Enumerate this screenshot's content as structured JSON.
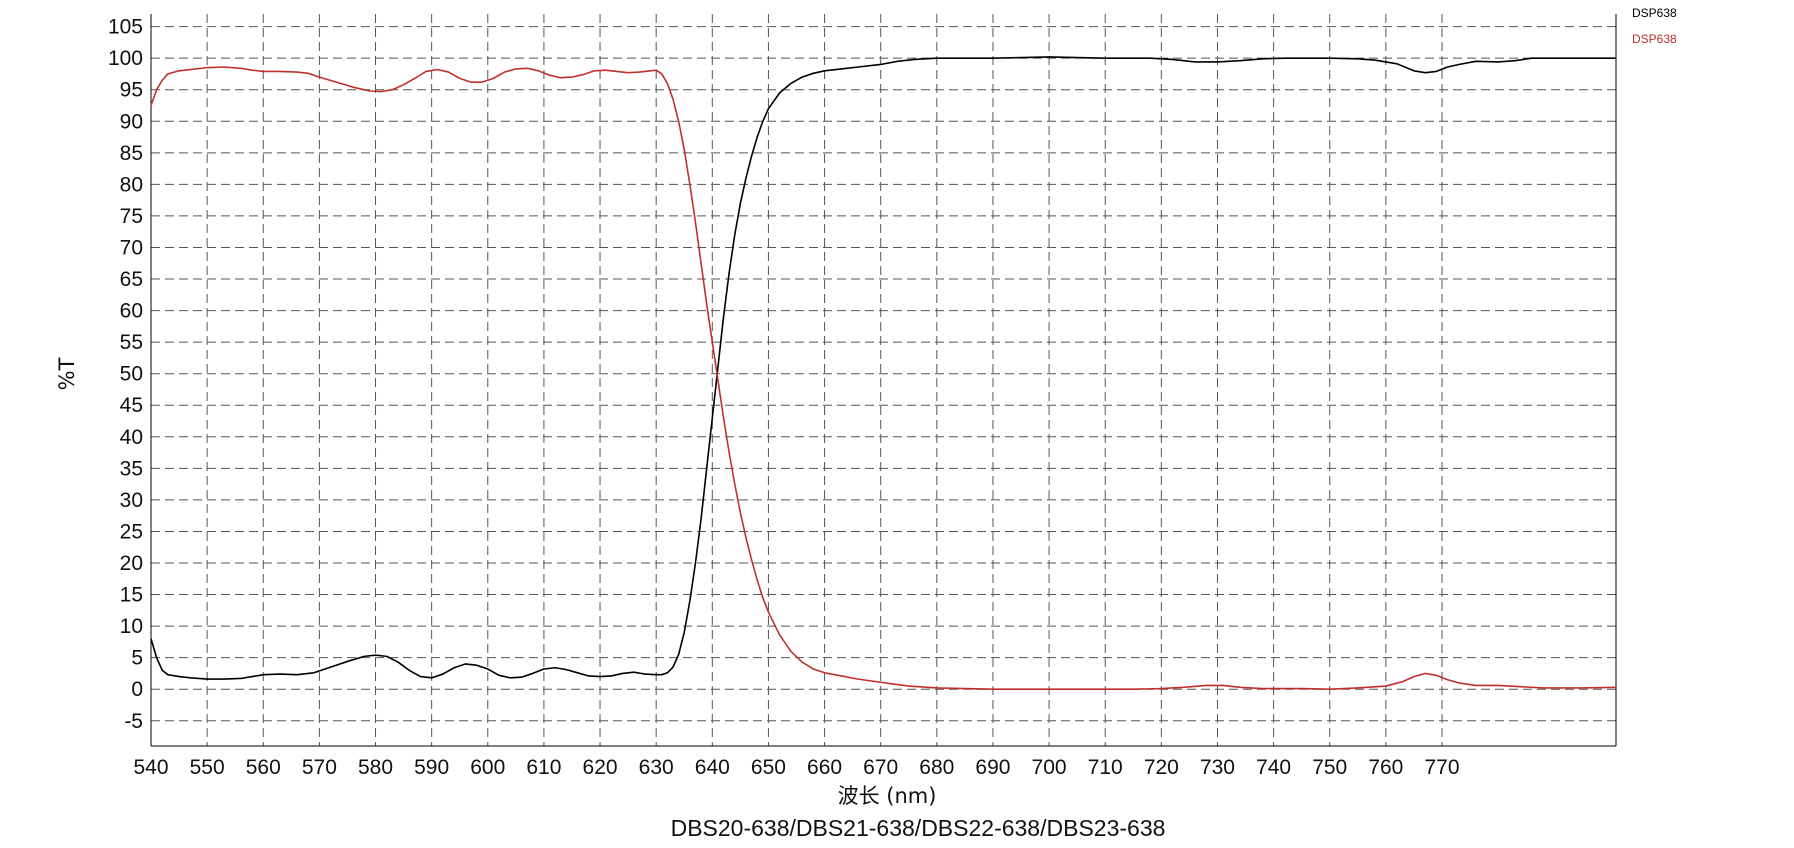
{
  "chart_data": {
    "type": "line",
    "title": "DBS20-638/DBS21-638/DBS22-638/DBS23-638",
    "xlabel": "波长 (nm)",
    "ylabel": "%T",
    "xlim": [
      540,
      801
    ],
    "ylim": [
      -9,
      107
    ],
    "x_ticks": [
      540,
      550,
      560,
      570,
      580,
      590,
      600,
      610,
      620,
      630,
      640,
      650,
      660,
      670,
      680,
      690,
      700,
      710,
      720,
      730,
      740,
      750,
      760,
      770
    ],
    "y_ticks": [
      -5,
      0,
      5,
      10,
      15,
      20,
      25,
      30,
      35,
      40,
      45,
      50,
      55,
      60,
      65,
      70,
      75,
      80,
      85,
      90,
      95,
      100,
      105
    ],
    "grid": true,
    "legend_position": "top-right",
    "series": [
      {
        "name": "DSP638",
        "color": "#000000",
        "points": [
          [
            540,
            8
          ],
          [
            541,
            5
          ],
          [
            542,
            3
          ],
          [
            543,
            2.3
          ],
          [
            545,
            2
          ],
          [
            547,
            1.8
          ],
          [
            550,
            1.6
          ],
          [
            553,
            1.6
          ],
          [
            556,
            1.7
          ],
          [
            558,
            2
          ],
          [
            560,
            2.3
          ],
          [
            563,
            2.4
          ],
          [
            566,
            2.3
          ],
          [
            569,
            2.6
          ],
          [
            572,
            3.5
          ],
          [
            575,
            4.4
          ],
          [
            578,
            5.2
          ],
          [
            580,
            5.4
          ],
          [
            582,
            5.2
          ],
          [
            584,
            4.3
          ],
          [
            586,
            3
          ],
          [
            588,
            2
          ],
          [
            590,
            1.8
          ],
          [
            592,
            2.4
          ],
          [
            594,
            3.4
          ],
          [
            596,
            4
          ],
          [
            598,
            3.8
          ],
          [
            600,
            3.2
          ],
          [
            602,
            2.2
          ],
          [
            604,
            1.8
          ],
          [
            606,
            1.9
          ],
          [
            608,
            2.5
          ],
          [
            610,
            3.2
          ],
          [
            612,
            3.4
          ],
          [
            614,
            3.1
          ],
          [
            616,
            2.6
          ],
          [
            618,
            2.1
          ],
          [
            620,
            2
          ],
          [
            622,
            2.1
          ],
          [
            624,
            2.5
          ],
          [
            626,
            2.7
          ],
          [
            628,
            2.4
          ],
          [
            630,
            2.3
          ],
          [
            631,
            2.3
          ],
          [
            632,
            2.6
          ],
          [
            633,
            3.5
          ],
          [
            634,
            5.5
          ],
          [
            635,
            9
          ],
          [
            636,
            14
          ],
          [
            637,
            20
          ],
          [
            638,
            27
          ],
          [
            639,
            35
          ],
          [
            640,
            43
          ],
          [
            641,
            51
          ],
          [
            642,
            59
          ],
          [
            643,
            66
          ],
          [
            644,
            72
          ],
          [
            645,
            77
          ],
          [
            646,
            81
          ],
          [
            647,
            84.5
          ],
          [
            648,
            87.5
          ],
          [
            649,
            90
          ],
          [
            650,
            92
          ],
          [
            652,
            94.5
          ],
          [
            654,
            96
          ],
          [
            656,
            97
          ],
          [
            658,
            97.6
          ],
          [
            660,
            98
          ],
          [
            663,
            98.3
          ],
          [
            666,
            98.6
          ],
          [
            670,
            99
          ],
          [
            673,
            99.5
          ],
          [
            676,
            99.8
          ],
          [
            680,
            100
          ],
          [
            690,
            100
          ],
          [
            700,
            100.2
          ],
          [
            710,
            100
          ],
          [
            718,
            100
          ],
          [
            722,
            99.8
          ],
          [
            726,
            99.4
          ],
          [
            730,
            99.4
          ],
          [
            734,
            99.6
          ],
          [
            738,
            99.9
          ],
          [
            742,
            100
          ],
          [
            750,
            100
          ],
          [
            755,
            99.9
          ],
          [
            758,
            99.7
          ],
          [
            762,
            99.1
          ],
          [
            765,
            98
          ],
          [
            767,
            97.7
          ],
          [
            769,
            97.9
          ],
          [
            771,
            98.6
          ],
          [
            773,
            99
          ],
          [
            776,
            99.5
          ],
          [
            780,
            99.4
          ],
          [
            783,
            99.6
          ],
          [
            786,
            100
          ],
          [
            790,
            100
          ],
          [
            801,
            100
          ]
        ]
      },
      {
        "name": "DSP638",
        "color": "#c0312b",
        "points": [
          [
            540,
            92.5
          ],
          [
            541,
            95
          ],
          [
            542,
            96.5
          ],
          [
            543,
            97.5
          ],
          [
            545,
            98
          ],
          [
            547,
            98.2
          ],
          [
            550,
            98.5
          ],
          [
            553,
            98.6
          ],
          [
            556,
            98.4
          ],
          [
            558,
            98.1
          ],
          [
            560,
            97.9
          ],
          [
            563,
            97.9
          ],
          [
            566,
            97.8
          ],
          [
            568,
            97.6
          ],
          [
            570,
            97
          ],
          [
            573,
            96.2
          ],
          [
            576,
            95.4
          ],
          [
            579,
            94.8
          ],
          [
            581,
            94.7
          ],
          [
            583,
            95
          ],
          [
            585,
            95.8
          ],
          [
            587,
            96.8
          ],
          [
            589,
            97.9
          ],
          [
            591,
            98.2
          ],
          [
            593,
            97.8
          ],
          [
            595,
            96.8
          ],
          [
            597,
            96.2
          ],
          [
            599,
            96.2
          ],
          [
            601,
            96.8
          ],
          [
            603,
            97.8
          ],
          [
            605,
            98.3
          ],
          [
            607,
            98.4
          ],
          [
            609,
            98
          ],
          [
            611,
            97.3
          ],
          [
            613,
            96.9
          ],
          [
            615,
            97
          ],
          [
            617,
            97.4
          ],
          [
            619,
            98
          ],
          [
            621,
            98.1
          ],
          [
            623,
            97.9
          ],
          [
            625,
            97.7
          ],
          [
            627,
            97.8
          ],
          [
            629,
            98
          ],
          [
            630,
            98.1
          ],
          [
            631,
            97.5
          ],
          [
            632,
            96
          ],
          [
            633,
            93.5
          ],
          [
            634,
            90
          ],
          [
            635,
            85.5
          ],
          [
            636,
            80
          ],
          [
            637,
            74
          ],
          [
            638,
            67.5
          ],
          [
            639,
            61
          ],
          [
            640,
            55
          ],
          [
            641,
            49
          ],
          [
            642,
            43
          ],
          [
            643,
            37.5
          ],
          [
            644,
            32.5
          ],
          [
            645,
            28
          ],
          [
            646,
            24
          ],
          [
            647,
            20.5
          ],
          [
            648,
            17.3
          ],
          [
            649,
            14.5
          ],
          [
            650,
            12.2
          ],
          [
            652,
            8.6
          ],
          [
            654,
            6
          ],
          [
            656,
            4.3
          ],
          [
            658,
            3.2
          ],
          [
            660,
            2.6
          ],
          [
            663,
            2.1
          ],
          [
            666,
            1.6
          ],
          [
            670,
            1.1
          ],
          [
            675,
            0.5
          ],
          [
            680,
            0.2
          ],
          [
            690,
            0
          ],
          [
            700,
            0
          ],
          [
            710,
            0
          ],
          [
            715,
            0
          ],
          [
            720,
            0.1
          ],
          [
            724,
            0.3
          ],
          [
            728,
            0.6
          ],
          [
            731,
            0.6
          ],
          [
            734,
            0.3
          ],
          [
            738,
            0.1
          ],
          [
            745,
            0.1
          ],
          [
            750,
            0
          ],
          [
            755,
            0.2
          ],
          [
            760,
            0.5
          ],
          [
            763,
            1.2
          ],
          [
            765,
            2
          ],
          [
            767,
            2.5
          ],
          [
            769,
            2.2
          ],
          [
            771,
            1.5
          ],
          [
            773,
            1
          ],
          [
            776,
            0.6
          ],
          [
            780,
            0.6
          ],
          [
            784,
            0.4
          ],
          [
            788,
            0.2
          ],
          [
            795,
            0.2
          ],
          [
            801,
            0.3
          ]
        ]
      }
    ]
  }
}
